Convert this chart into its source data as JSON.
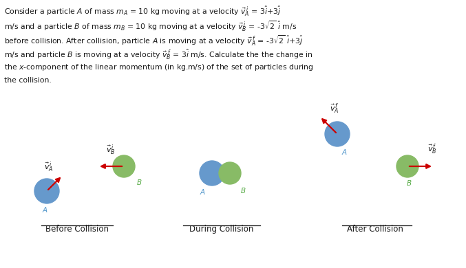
{
  "bg_color": "#ffffff",
  "text_color": "#1a1a1a",
  "blue_color": "#6699cc",
  "green_color": "#88bb66",
  "arrow_color": "#cc0000",
  "label_color_A": "#5599cc",
  "label_color_B": "#55aa44",
  "label_before": "Before Collision",
  "label_during": "During Collision",
  "label_after": "After Collision",
  "figsize": [
    6.77,
    3.9
  ],
  "dpi": 100
}
